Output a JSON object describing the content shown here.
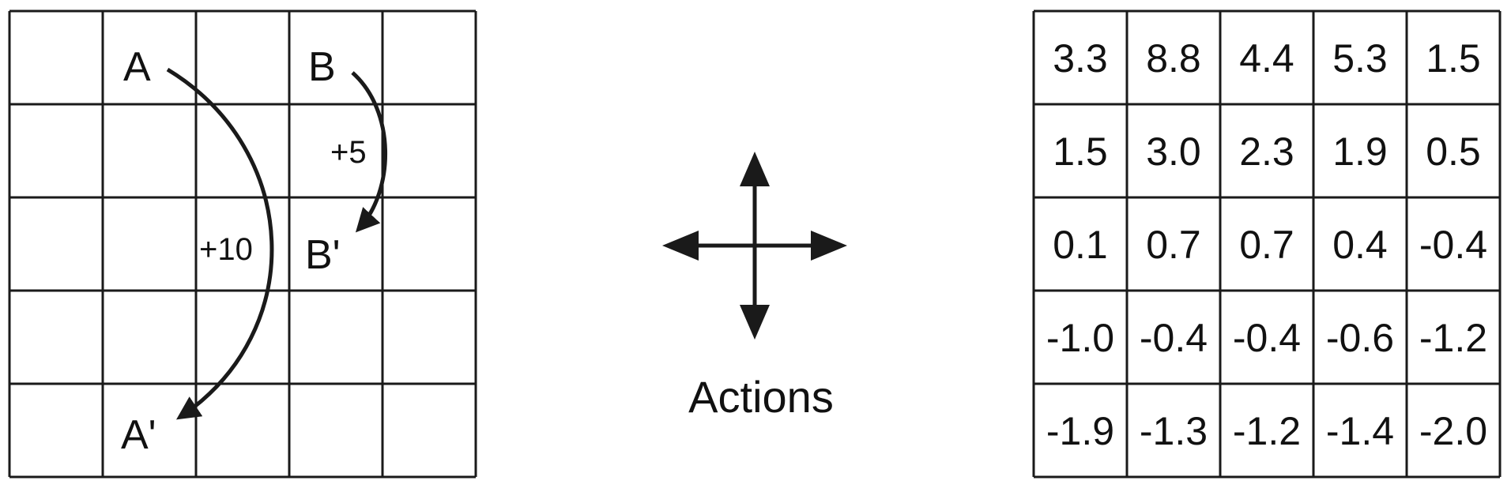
{
  "gridworld": {
    "rows": 5,
    "cols": 5,
    "state_a_label": "A",
    "state_a_prime_label": "A'",
    "state_b_label": "B",
    "state_b_prime_label": "B'",
    "reward_a_label": "+10",
    "reward_b_label": "+5"
  },
  "actions": {
    "label": "Actions",
    "directions": [
      "up",
      "down",
      "left",
      "right"
    ]
  },
  "value_table": {
    "rows": [
      [
        "3.3",
        "8.8",
        "4.4",
        "5.3",
        "1.5"
      ],
      [
        "1.5",
        "3.0",
        "2.3",
        "1.9",
        "0.5"
      ],
      [
        "0.1",
        "0.7",
        "0.7",
        "0.4",
        "-0.4"
      ],
      [
        "-1.0",
        "-0.4",
        "-0.4",
        "-0.6",
        "-1.2"
      ],
      [
        "-1.9",
        "-1.3",
        "-1.2",
        "-1.4",
        "-2.0"
      ]
    ]
  },
  "colors": {
    "ink": "#1a1a1a",
    "background": "#ffffff"
  }
}
